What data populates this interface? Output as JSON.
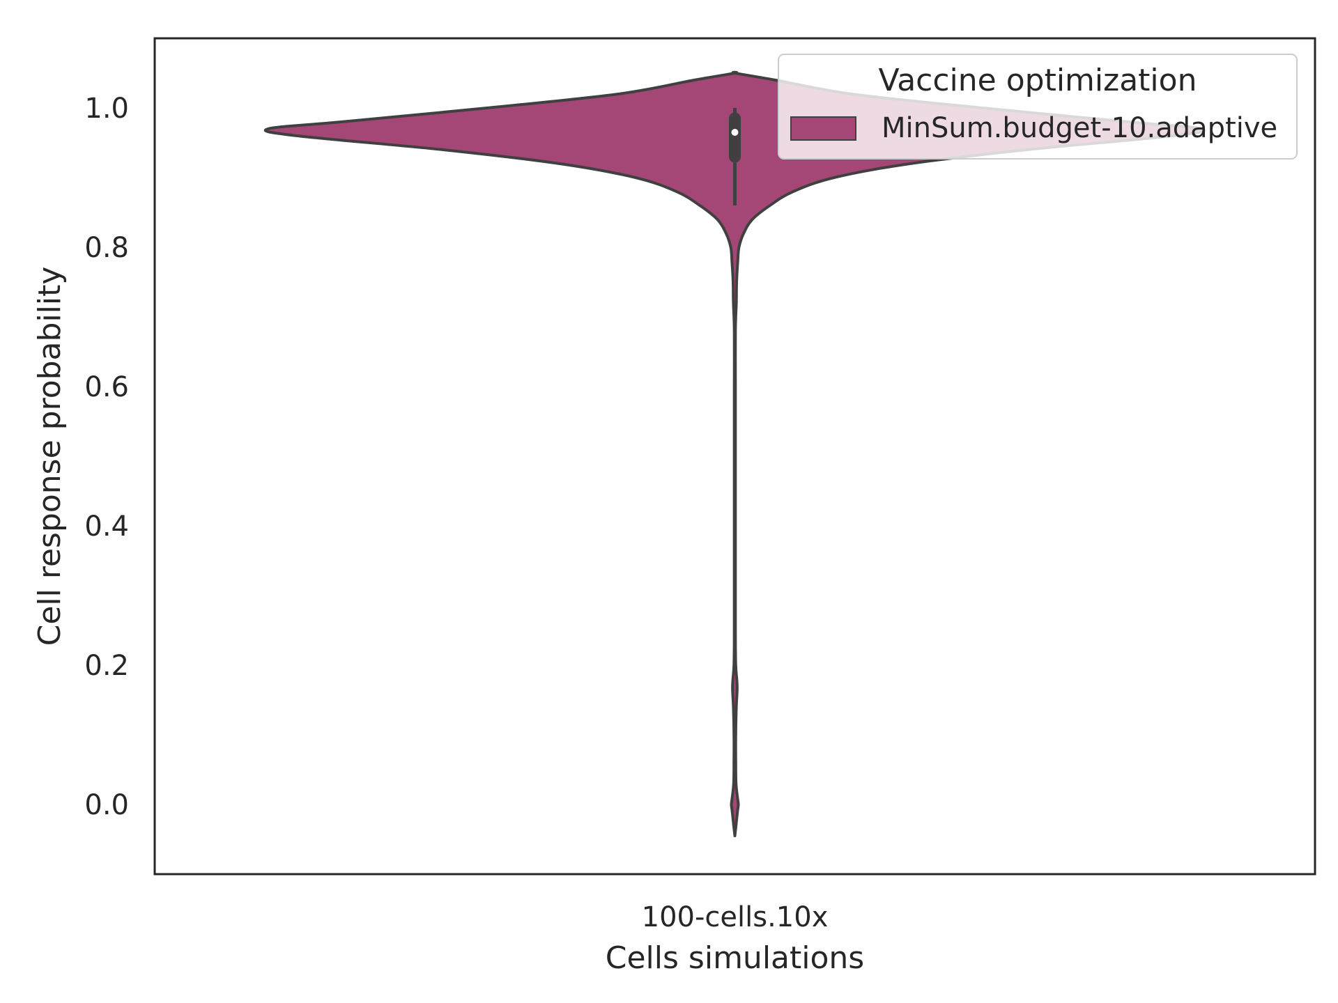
{
  "chart_data": {
    "type": "violin",
    "xlabel": "Cells simulations",
    "ylabel": "Cell response probability",
    "categories": [
      "100-cells.10x"
    ],
    "ylim": [
      -0.1,
      1.1
    ],
    "y_ticks": [
      "0.0",
      "0.2",
      "0.4",
      "0.6",
      "0.8",
      "1.0"
    ],
    "grid": false,
    "legend": {
      "title": "Vaccine optimization",
      "placement": "top-right",
      "entries": [
        {
          "label": "MinSum.budget-10.adaptive",
          "color": "#a44776"
        }
      ]
    },
    "series": [
      {
        "name": "MinSum.budget-10.adaptive",
        "category": "100-cells.10x",
        "color": "#a44776",
        "density_profile": {
          "y": [
            -0.045,
            -0.03,
            -0.01,
            0.0,
            0.01,
            0.03,
            0.06,
            0.1,
            0.14,
            0.17,
            0.2,
            0.25,
            0.35,
            0.5,
            0.55,
            0.6,
            0.68,
            0.72,
            0.75,
            0.78,
            0.8,
            0.82,
            0.84,
            0.86,
            0.88,
            0.9,
            0.92,
            0.94,
            0.96,
            0.97,
            0.98,
            1.0,
            1.02,
            1.04,
            1.05
          ],
          "half_width": [
            0.0,
            0.004,
            0.009,
            0.012,
            0.009,
            0.004,
            0.003,
            0.003,
            0.005,
            0.008,
            0.003,
            0.002,
            0.002,
            0.002,
            0.002,
            0.002,
            0.002,
            0.005,
            0.006,
            0.01,
            0.014,
            0.03,
            0.06,
            0.12,
            0.2,
            0.34,
            0.6,
            1.0,
            1.5,
            1.6,
            1.35,
            0.85,
            0.4,
            0.14,
            0.0
          ]
        },
        "box": {
          "whisker_low": 0.86,
          "q1": 0.93,
          "median": 0.965,
          "q3": 0.985,
          "whisker_high": 1.0
        }
      }
    ]
  }
}
